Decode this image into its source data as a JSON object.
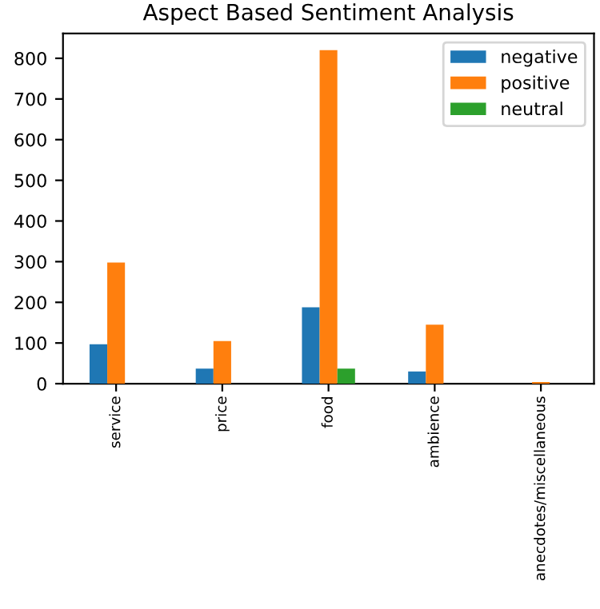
{
  "chart_data": {
    "type": "bar",
    "title": "Aspect Based Sentiment Analysis",
    "categories": [
      "service",
      "price",
      "food",
      "ambience",
      "anecdotes/miscellaneous"
    ],
    "series": [
      {
        "name": "negative",
        "color": "#1f77b4",
        "values": [
          97,
          37,
          188,
          30,
          0
        ]
      },
      {
        "name": "positive",
        "color": "#ff7f0e",
        "values": [
          298,
          105,
          820,
          145,
          4
        ]
      },
      {
        "name": "neutral",
        "color": "#2ca02c",
        "values": [
          0,
          0,
          37,
          0,
          0
        ]
      }
    ],
    "ylim": [
      0,
      861
    ],
    "yticks": [
      0,
      100,
      200,
      300,
      400,
      500,
      600,
      700,
      800
    ],
    "legend": "top right",
    "grid": false
  }
}
